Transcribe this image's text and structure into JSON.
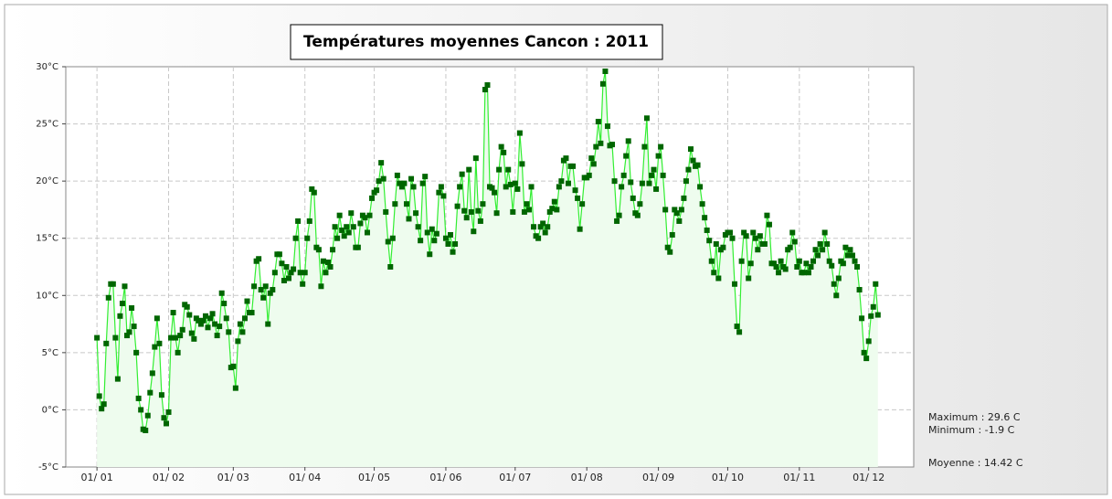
{
  "chart_data": {
    "type": "line",
    "title": "Températures moyennes Cancon : 2011",
    "values": [
      6.3,
      1.2,
      0.1,
      0.5,
      5.8,
      9.8,
      11,
      11,
      6.3,
      2.7,
      8.2,
      9.3,
      10.8,
      6.5,
      6.8,
      8.9,
      7.3,
      5,
      1,
      0,
      -1.7,
      -1.8,
      -0.5,
      1.5,
      3.2,
      5.5,
      8,
      5.8,
      1.3,
      -0.7,
      -1.2,
      -0.2,
      6.3,
      8.5,
      6.3,
      5,
      6.5,
      7,
      9.2,
      9,
      8.3,
      6.7,
      6.2,
      8,
      7.8,
      7.5,
      7.8,
      8.2,
      7.2,
      8,
      8.4,
      7.5,
      6.5,
      7.3,
      10.2,
      9.3,
      8,
      6.8,
      3.7,
      3.8,
      1.9,
      6,
      7.5,
      6.8,
      8,
      9.5,
      8.5,
      8.5,
      10.8,
      13,
      13.2,
      10.5,
      9.8,
      10.8,
      7.5,
      10.2,
      10.5,
      12,
      13.6,
      13.6,
      12.8,
      11.3,
      12.5,
      11.5,
      12,
      12.3,
      15,
      16.5,
      12,
      11,
      12,
      15,
      16.5,
      19.3,
      19,
      14.2,
      14,
      10.8,
      13,
      12,
      12.9,
      12.5,
      14,
      16,
      15,
      17,
      15.7,
      15.2,
      16,
      15.5,
      17.2,
      16,
      14.2,
      14.2,
      16.3,
      17,
      16.8,
      15.5,
      17,
      18.5,
      19,
      19.2,
      20,
      21.6,
      20.2,
      17.3,
      14.7,
      12.5,
      15,
      18,
      20.5,
      19.8,
      19.5,
      19.8,
      18,
      16.7,
      20.2,
      19.5,
      17.2,
      16,
      14.8,
      19.8,
      20.4,
      15.5,
      13.6,
      15.8,
      14.8,
      15.4,
      19,
      19.5,
      18.7,
      15,
      14.5,
      15.3,
      13.8,
      14.5,
      17.8,
      19.5,
      20.6,
      17.4,
      16.8,
      21,
      17.3,
      15.6,
      22,
      17.4,
      16.5,
      18,
      28,
      28.4,
      19.5,
      19.4,
      19,
      17.2,
      21,
      23,
      22.5,
      19.5,
      21,
      19.7,
      17.3,
      19.8,
      19.3,
      24.2,
      21.5,
      17.3,
      18,
      17.5,
      19.5,
      16,
      15.2,
      15,
      16,
      16.3,
      15.5,
      16,
      17.3,
      17.6,
      18.2,
      17.5,
      19.5,
      20,
      21.8,
      22,
      19.8,
      21.3,
      21.3,
      19.2,
      18.5,
      15.8,
      18,
      20.3,
      20.3,
      20.5,
      22,
      21.5,
      23,
      25.2,
      23.3,
      28.5,
      29.6,
      24.8,
      23.1,
      23.2,
      20,
      16.5,
      17,
      19.5,
      20.5,
      22.2,
      23.5,
      19.9,
      18.5,
      17.2,
      17,
      18,
      19.8,
      23,
      25.5,
      19.8,
      20.5,
      21,
      19.3,
      22.2,
      23,
      20.5,
      17.5,
      14.2,
      13.8,
      15.3,
      17.5,
      17.2,
      16.5,
      17.5,
      18.5,
      20,
      21,
      22.8,
      21.8,
      21.3,
      21.4,
      19.5,
      18,
      16.8,
      15.7,
      14.8,
      13,
      12,
      14.5,
      11.5,
      14,
      14.2,
      15.3,
      15.5,
      15.5,
      15,
      11,
      7.3,
      6.8,
      13,
      15.5,
      15.2,
      11.5,
      12.8,
      15.5,
      15,
      14,
      15.2,
      14.5,
      14.5,
      17,
      16.2,
      12.8,
      12.8,
      12.5,
      12,
      13,
      12.5,
      12.3,
      14,
      14.2,
      15.5,
      14.7,
      12.5,
      13,
      12,
      12,
      12.8,
      12,
      12.5,
      13,
      14,
      13.5,
      14.5,
      14,
      15.5,
      14.5,
      13,
      12.6,
      11,
      10,
      11.5,
      13,
      12.8,
      14.2,
      13.5,
      14,
      13.5,
      13,
      12.5,
      10.5,
      8,
      5,
      4.5,
      6,
      8.2,
      9,
      11,
      8.3
    ],
    "line_color": "#33ee33",
    "marker_color": "#006600",
    "fill_color": "#eefcee",
    "xlim": [
      -13.5,
      353.5
    ],
    "xticks": [
      {
        "value": 0,
        "label": "01/ 01"
      },
      {
        "value": 31,
        "label": "01/ 02"
      },
      {
        "value": 59,
        "label": "01/ 03"
      },
      {
        "value": 90,
        "label": "01/ 04"
      },
      {
        "value": 120,
        "label": "01/ 05"
      },
      {
        "value": 151,
        "label": "01/ 06"
      },
      {
        "value": 181,
        "label": "01/ 07"
      },
      {
        "value": 212,
        "label": "01/ 08"
      },
      {
        "value": 243,
        "label": "01/ 09"
      },
      {
        "value": 273,
        "label": "01/ 10"
      },
      {
        "value": 304,
        "label": "01/ 11"
      },
      {
        "value": 334,
        "label": "01/ 12"
      }
    ],
    "ylim": [
      -5,
      30
    ],
    "yticks": [
      {
        "value": -5,
        "label": "-5°C"
      },
      {
        "value": 0,
        "label": "0°C"
      },
      {
        "value": 5,
        "label": "5°C"
      },
      {
        "value": 10,
        "label": "10°C"
      },
      {
        "value": 15,
        "label": "15°C"
      },
      {
        "value": 20,
        "label": "20°C"
      },
      {
        "value": 25,
        "label": "25°C"
      },
      {
        "value": 30,
        "label": "30°C"
      }
    ],
    "grid": true,
    "annotations": [
      "Maximum : 29.6 C",
      "Minimum : -1.9 C",
      "Moyenne : 14.42 C"
    ]
  }
}
